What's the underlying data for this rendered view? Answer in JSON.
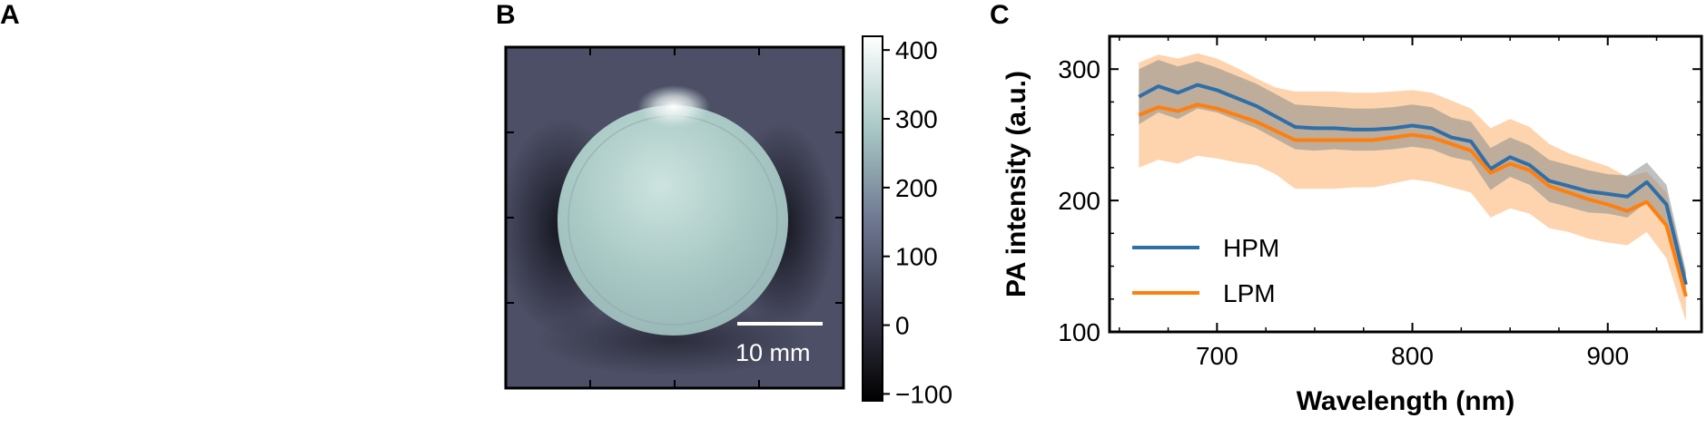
{
  "panels": {
    "a": "A",
    "b": "B",
    "c": "C"
  },
  "image_panel": {
    "scale_bar_label": "10 mm",
    "colormap": [
      "#000000",
      "#3a3a4e",
      "#6f7a92",
      "#a9c9c6",
      "#ffffff"
    ],
    "colorbar_ticks": [
      "−100",
      "0",
      "100",
      "200",
      "300",
      "400"
    ],
    "colorbar_values": [
      -100,
      0,
      100,
      200,
      300,
      400
    ],
    "colorbar_range": [
      -110,
      420
    ]
  },
  "chart_data": {
    "type": "line",
    "xlabel": "Wavelength (nm)",
    "ylabel": "PA intensity (a.u.)",
    "xlim": [
      645,
      948
    ],
    "ylim": [
      100,
      325
    ],
    "xticks": [
      700,
      800,
      900
    ],
    "yticks": [
      100,
      200,
      300
    ],
    "legend_position": "lower-left",
    "x": [
      660,
      670,
      680,
      690,
      700,
      710,
      720,
      730,
      740,
      750,
      760,
      770,
      780,
      790,
      800,
      810,
      820,
      830,
      840,
      850,
      860,
      870,
      880,
      890,
      900,
      910,
      920,
      930,
      940
    ],
    "series": [
      {
        "name": "HPM",
        "color": "#2f6fa8",
        "band_color": "#8a8c8c",
        "values": [
          279,
          287,
          282,
          288,
          284,
          278,
          272,
          264,
          256,
          255,
          255,
          254,
          254,
          255,
          257,
          255,
          248,
          245,
          224,
          233,
          227,
          215,
          211,
          207,
          205,
          203,
          214,
          197,
          136
        ],
        "upper": [
          300,
          307,
          302,
          306,
          301,
          295,
          289,
          281,
          273,
          272,
          271,
          270,
          270,
          271,
          273,
          271,
          263,
          260,
          240,
          248,
          242,
          231,
          227,
          223,
          220,
          219,
          229,
          212,
          146
        ],
        "lower": [
          258,
          267,
          262,
          270,
          267,
          261,
          255,
          247,
          239,
          238,
          239,
          238,
          238,
          239,
          241,
          239,
          233,
          230,
          208,
          218,
          212,
          199,
          195,
          191,
          190,
          187,
          199,
          182,
          126
        ]
      },
      {
        "name": "LPM",
        "color": "#ff7f0e",
        "band_color": "#fdcfa4",
        "values": [
          265,
          271,
          268,
          273,
          270,
          265,
          260,
          253,
          246,
          246,
          246,
          246,
          246,
          248,
          250,
          248,
          243,
          238,
          221,
          228,
          223,
          211,
          206,
          201,
          197,
          192,
          199,
          181,
          127
        ],
        "upper": [
          305,
          311,
          308,
          312,
          308,
          301,
          293,
          286,
          283,
          283,
          283,
          282,
          282,
          283,
          284,
          282,
          276,
          270,
          255,
          262,
          256,
          243,
          236,
          231,
          226,
          218,
          222,
          206,
          146
        ],
        "lower": [
          225,
          231,
          228,
          234,
          232,
          229,
          227,
          220,
          209,
          209,
          209,
          210,
          210,
          213,
          216,
          214,
          210,
          206,
          187,
          194,
          190,
          179,
          176,
          171,
          168,
          166,
          176,
          156,
          108
        ]
      }
    ]
  }
}
